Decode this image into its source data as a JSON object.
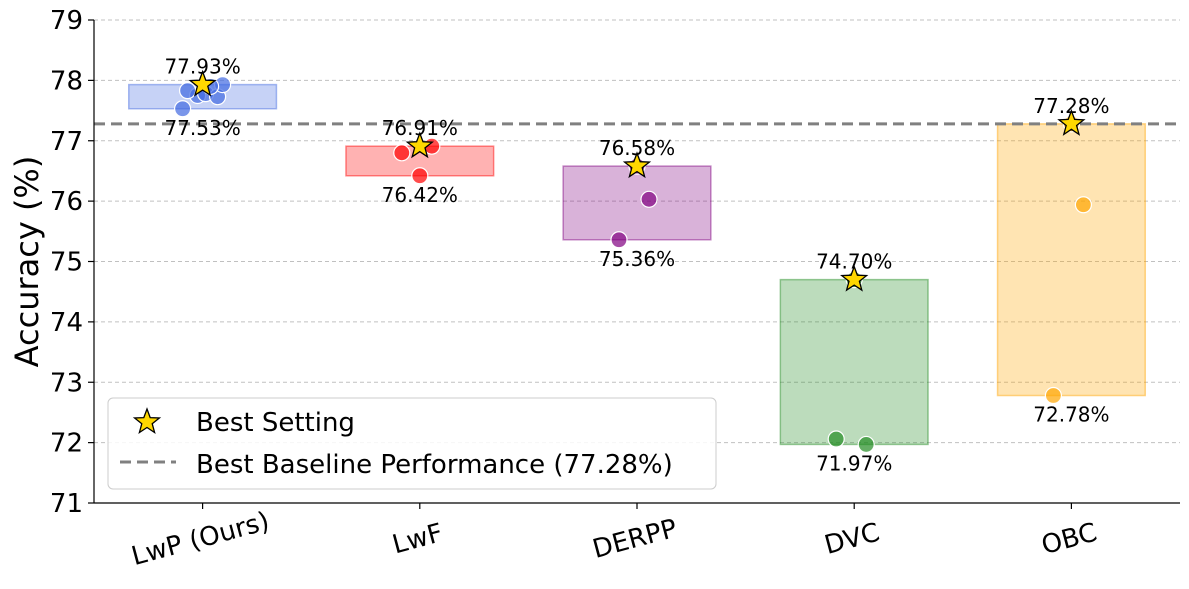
{
  "chart_data": {
    "type": "scatter",
    "ylabel": "Accuracy (%)",
    "xlabel": "",
    "ylim": [
      71,
      79
    ],
    "yticks": [
      71,
      72,
      73,
      74,
      75,
      76,
      77,
      78,
      79
    ],
    "grid": "horizontal-dashed",
    "baseline": {
      "value": 77.28,
      "label": "Best Baseline Performance (77.28%)",
      "color": "#808080"
    },
    "legend": {
      "placement": "lower-left",
      "entries": [
        "Best Setting",
        "Best Baseline Performance (77.28%)"
      ]
    },
    "best_marker_color": "#FFD700",
    "categories": [
      {
        "name": "LwP (Ours)",
        "color": "#4169E1",
        "points": [
          77.53,
          77.75,
          77.83,
          77.78,
          77.73,
          77.93,
          77.9
        ],
        "best": 77.93,
        "min": 77.53,
        "max_label": "77.93%",
        "min_label": "77.53%"
      },
      {
        "name": "LwF",
        "color": "#FF0000",
        "points": [
          76.42,
          76.91,
          76.8
        ],
        "best": 76.91,
        "min": 76.42,
        "max_label": "76.91%",
        "min_label": "76.42%"
      },
      {
        "name": "DERPP",
        "color": "#800080",
        "points": [
          76.58,
          76.03,
          75.36
        ],
        "best": 76.58,
        "min": 75.36,
        "max_label": "76.58%",
        "min_label": "75.36%"
      },
      {
        "name": "DVC",
        "color": "#228B22",
        "points": [
          74.7,
          71.97,
          72.06
        ],
        "best": 74.7,
        "min": 71.97,
        "max_label": "74.70%",
        "min_label": "71.97%"
      },
      {
        "name": "OBC",
        "color": "#FFA500",
        "points": [
          77.28,
          75.94,
          72.78
        ],
        "best": 77.28,
        "min": 72.78,
        "max_label": "77.28%",
        "min_label": "72.78%"
      }
    ]
  }
}
